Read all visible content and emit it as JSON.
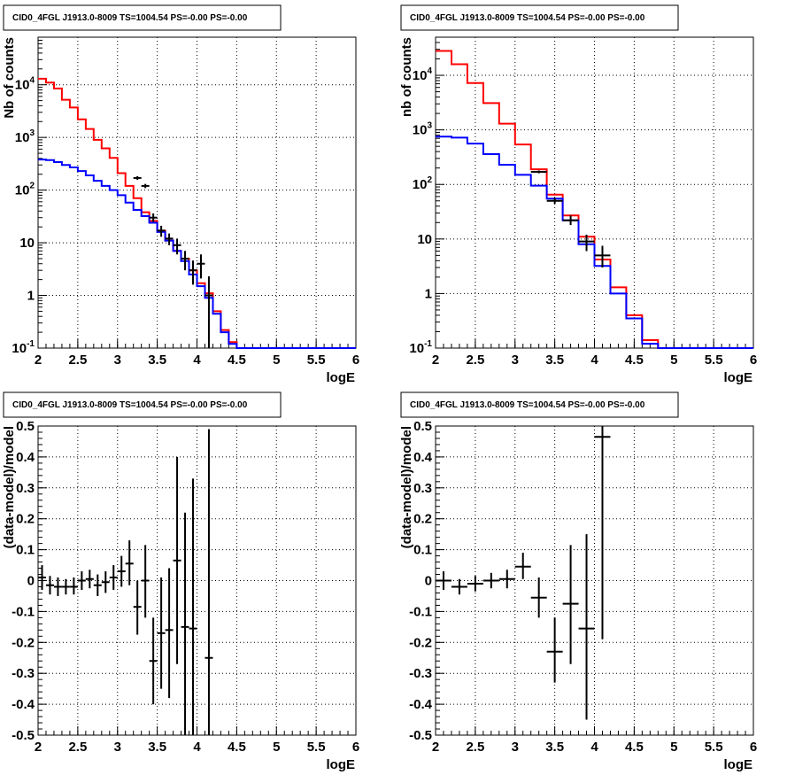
{
  "colors": {
    "data": "#000000",
    "model_total": "#ff0000",
    "model_source": "#0000ff",
    "grid": "#000000",
    "background": "#ffffff"
  },
  "chart_data": [
    {
      "type": "line",
      "title": "CID0_4FGL J1913.0-8009 TS=1004.54 PS=-0.00 PS=-0.00",
      "xlabel": "logE",
      "ylabel": "Nb of counts",
      "yscale": "log",
      "grid": true,
      "xlim": [
        2,
        6
      ],
      "ylim": [
        0.1,
        80000
      ],
      "xticks": [
        "2",
        "2.5",
        "3",
        "3.5",
        "4",
        "4.5",
        "5",
        "5.5",
        "6"
      ],
      "yticks": [
        "10^-1",
        "1",
        "10",
        "10^2",
        "10^3",
        "10^4"
      ],
      "bin_edges": [
        2.0,
        2.1,
        2.2,
        2.3,
        2.4,
        2.5,
        2.6,
        2.7,
        2.8,
        2.9,
        3.0,
        3.1,
        3.2,
        3.3,
        3.4,
        3.5,
        3.6,
        3.7,
        3.8,
        3.9,
        4.0,
        4.1,
        4.2,
        4.3,
        4.4,
        4.5,
        4.6,
        4.7,
        4.8,
        4.9,
        5.0,
        5.1,
        5.2,
        5.3,
        5.4,
        5.5,
        5.6,
        5.7,
        5.8,
        5.9,
        6.0
      ],
      "series": [
        {
          "color": "#ff0000",
          "style": "histogram",
          "values": [
            13000,
            11000,
            8500,
            5200,
            3700,
            2200,
            1450,
            900,
            620,
            410,
            210,
            120,
            70,
            38,
            26,
            17,
            11,
            7,
            5,
            3,
            1.7,
            1.1,
            0.5,
            0.22,
            0.13,
            0.1,
            0.1,
            0.1,
            0.1,
            0.1,
            0.1,
            0.1,
            0.1,
            0.1,
            0.1,
            0.1,
            0.1,
            0.1,
            0.1,
            0.1
          ]
        },
        {
          "color": "#0000ff",
          "style": "histogram",
          "values": [
            380,
            370,
            340,
            300,
            270,
            230,
            190,
            150,
            120,
            100,
            80,
            58,
            42,
            32,
            24,
            16,
            11,
            7,
            4.5,
            2.5,
            1.5,
            0.9,
            0.45,
            0.2,
            0.12,
            0.1,
            0.1,
            0.1,
            0.1,
            0.1,
            0.1,
            0.1,
            0.1,
            0.1,
            0.1,
            0.1,
            0.1,
            0.1,
            0.1,
            0.1
          ]
        },
        {
          "color": "#000000",
          "style": "errorbars",
          "x_halfwidth": 0.05,
          "points": [
            {
              "x": 3.25,
              "y": 170,
              "ylo": 157,
              "yhi": 183
            },
            {
              "x": 3.35,
              "y": 120,
              "ylo": 109,
              "yhi": 131
            },
            {
              "x": 3.45,
              "y": 30,
              "ylo": 25,
              "yhi": 36
            },
            {
              "x": 3.55,
              "y": 17,
              "ylo": 13,
              "yhi": 21
            },
            {
              "x": 3.65,
              "y": 12,
              "ylo": 9,
              "yhi": 15
            },
            {
              "x": 3.75,
              "y": 9,
              "ylo": 6,
              "yhi": 12
            },
            {
              "x": 3.85,
              "y": 5,
              "ylo": 3,
              "yhi": 7
            },
            {
              "x": 3.95,
              "y": 3,
              "ylo": 1.6,
              "yhi": 4.6
            },
            {
              "x": 4.05,
              "y": 4,
              "ylo": 2.1,
              "yhi": 6
            },
            {
              "x": 4.15,
              "y": 1,
              "ylo": 0.1,
              "yhi": 2.3
            }
          ]
        }
      ]
    },
    {
      "type": "line",
      "title": "CID0_4FGL J1913.0-8009 TS=1004.54 PS=-0.00 PS=-0.00",
      "xlabel": "logE",
      "ylabel": "nb of counts",
      "yscale": "log",
      "grid": true,
      "xlim": [
        2,
        6
      ],
      "ylim": [
        0.1,
        50000
      ],
      "xticks": [
        "2",
        "2.5",
        "3",
        "3.5",
        "4",
        "4.5",
        "5",
        "5.5",
        "6"
      ],
      "yticks": [
        "10^-1",
        "1",
        "10",
        "10^2",
        "10^3",
        "10^4"
      ],
      "bin_edges": [
        2.0,
        2.2,
        2.4,
        2.6,
        2.8,
        3.0,
        3.2,
        3.4,
        3.6,
        3.8,
        4.0,
        4.2,
        4.4,
        4.6,
        4.8,
        5.0,
        5.2,
        5.4,
        5.6,
        5.8,
        6.0
      ],
      "series": [
        {
          "color": "#ff0000",
          "style": "histogram",
          "values": [
            28000,
            16000,
            7200,
            3100,
            1300,
            540,
            190,
            65,
            27,
            11,
            4.2,
            1.3,
            0.4,
            0.14,
            0.1,
            0.1,
            0.1,
            0.1,
            0.1,
            0.1
          ]
        },
        {
          "color": "#0000ff",
          "style": "histogram",
          "values": [
            750,
            720,
            560,
            360,
            230,
            150,
            95,
            55,
            22,
            8,
            3.2,
            1.0,
            0.35,
            0.12,
            0.1,
            0.1,
            0.1,
            0.1,
            0.1,
            0.1
          ]
        },
        {
          "color": "#000000",
          "style": "errorbars",
          "x_halfwidth": 0.1,
          "points": [
            {
              "x": 3.3,
              "y": 170,
              "ylo": 160,
              "yhi": 180
            },
            {
              "x": 3.5,
              "y": 50,
              "ylo": 44,
              "yhi": 57
            },
            {
              "x": 3.7,
              "y": 22,
              "ylo": 18,
              "yhi": 27
            },
            {
              "x": 3.9,
              "y": 9,
              "ylo": 6,
              "yhi": 12
            },
            {
              "x": 4.1,
              "y": 5,
              "ylo": 3,
              "yhi": 7.5
            }
          ]
        }
      ]
    },
    {
      "type": "scatter",
      "title": "CID0_4FGL J1913.0-8009 TS=1004.54 PS=-0.00 PS=-0.00",
      "xlabel": "logE",
      "ylabel": "(data-model)/model",
      "yscale": "linear",
      "grid": true,
      "xlim": [
        2,
        6
      ],
      "ylim": [
        -0.5,
        0.5
      ],
      "xticks": [
        "2",
        "2.5",
        "3",
        "3.5",
        "4",
        "4.5",
        "5",
        "5.5",
        "6"
      ],
      "yticks": [
        "-0.5",
        "-0.4",
        "-0.3",
        "-0.2",
        "-0.1",
        "0",
        "0.1",
        "0.2",
        "0.3",
        "0.4",
        "0.5"
      ],
      "series": [
        {
          "color": "#000000",
          "style": "errorbars",
          "x_halfwidth": 0.05,
          "points": [
            {
              "x": 2.05,
              "y": 0.01,
              "ylo": -0.03,
              "yhi": 0.05
            },
            {
              "x": 2.15,
              "y": -0.015,
              "ylo": -0.045,
              "yhi": 0.015
            },
            {
              "x": 2.25,
              "y": -0.02,
              "ylo": -0.05,
              "yhi": 0.01
            },
            {
              "x": 2.35,
              "y": -0.02,
              "ylo": -0.045,
              "yhi": 0.005
            },
            {
              "x": 2.45,
              "y": -0.02,
              "ylo": -0.045,
              "yhi": 0.01
            },
            {
              "x": 2.55,
              "y": 0.0,
              "ylo": -0.03,
              "yhi": 0.03
            },
            {
              "x": 2.65,
              "y": 0.005,
              "ylo": -0.025,
              "yhi": 0.035
            },
            {
              "x": 2.75,
              "y": -0.015,
              "ylo": -0.05,
              "yhi": 0.02
            },
            {
              "x": 2.85,
              "y": -0.005,
              "ylo": -0.04,
              "yhi": 0.03
            },
            {
              "x": 2.95,
              "y": 0.01,
              "ylo": -0.03,
              "yhi": 0.05
            },
            {
              "x": 3.05,
              "y": 0.03,
              "ylo": -0.02,
              "yhi": 0.08
            },
            {
              "x": 3.15,
              "y": 0.055,
              "ylo": -0.015,
              "yhi": 0.13
            },
            {
              "x": 3.25,
              "y": -0.085,
              "ylo": -0.175,
              "yhi": 0.0
            },
            {
              "x": 3.35,
              "y": 0.0,
              "ylo": -0.12,
              "yhi": 0.115
            },
            {
              "x": 3.45,
              "y": -0.26,
              "ylo": -0.4,
              "yhi": -0.12
            },
            {
              "x": 3.55,
              "y": -0.17,
              "ylo": -0.35,
              "yhi": 0.01
            },
            {
              "x": 3.65,
              "y": -0.16,
              "ylo": -0.38,
              "yhi": 0.04
            },
            {
              "x": 3.75,
              "y": 0.065,
              "ylo": -0.27,
              "yhi": 0.4
            },
            {
              "x": 3.85,
              "y": -0.15,
              "ylo": -0.5,
              "yhi": 0.22
            },
            {
              "x": 3.95,
              "y": -0.155,
              "ylo": -0.5,
              "yhi": 0.33
            },
            {
              "x": 4.15,
              "y": -0.25,
              "ylo": -0.5,
              "yhi": 0.49
            }
          ]
        }
      ]
    },
    {
      "type": "scatter",
      "title": "CID0_4FGL J1913.0-8009 TS=1004.54 PS=-0.00 PS=-0.00",
      "xlabel": "logE",
      "ylabel": "(data-model)/model",
      "yscale": "linear",
      "grid": true,
      "xlim": [
        2,
        6
      ],
      "ylim": [
        -0.5,
        0.5
      ],
      "xticks": [
        "2",
        "2.5",
        "3",
        "3.5",
        "4",
        "4.5",
        "5",
        "5.5",
        "6"
      ],
      "yticks": [
        "-0.5",
        "-0.4",
        "-0.3",
        "-0.2",
        "-0.1",
        "0",
        "0.1",
        "0.2",
        "0.3",
        "0.4",
        "0.5"
      ],
      "series": [
        {
          "color": "#000000",
          "style": "errorbars",
          "x_halfwidth": 0.1,
          "points": [
            {
              "x": 2.1,
              "y": 0.0,
              "ylo": -0.03,
              "yhi": 0.03
            },
            {
              "x": 2.3,
              "y": -0.02,
              "ylo": -0.045,
              "yhi": 0.005
            },
            {
              "x": 2.5,
              "y": -0.01,
              "ylo": -0.035,
              "yhi": 0.015
            },
            {
              "x": 2.7,
              "y": 0.0,
              "ylo": -0.025,
              "yhi": 0.025
            },
            {
              "x": 2.9,
              "y": 0.005,
              "ylo": -0.025,
              "yhi": 0.035
            },
            {
              "x": 3.1,
              "y": 0.045,
              "ylo": 0.005,
              "yhi": 0.09
            },
            {
              "x": 3.3,
              "y": -0.055,
              "ylo": -0.12,
              "yhi": 0.01
            },
            {
              "x": 3.5,
              "y": -0.23,
              "ylo": -0.33,
              "yhi": -0.12
            },
            {
              "x": 3.7,
              "y": -0.075,
              "ylo": -0.27,
              "yhi": 0.115
            },
            {
              "x": 3.9,
              "y": -0.155,
              "ylo": -0.45,
              "yhi": 0.15
            },
            {
              "x": 4.1,
              "y": 0.465,
              "ylo": -0.19,
              "yhi": 0.5
            }
          ]
        }
      ]
    }
  ]
}
